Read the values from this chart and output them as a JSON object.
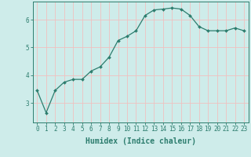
{
  "x": [
    0,
    1,
    2,
    3,
    4,
    5,
    6,
    7,
    8,
    9,
    10,
    11,
    12,
    13,
    14,
    15,
    16,
    17,
    18,
    19,
    20,
    21,
    22,
    23
  ],
  "y": [
    3.45,
    2.65,
    3.45,
    3.75,
    3.85,
    3.85,
    4.15,
    4.3,
    4.65,
    5.25,
    5.4,
    5.6,
    6.15,
    6.35,
    6.38,
    6.42,
    6.38,
    6.15,
    5.75,
    5.6,
    5.6,
    5.6,
    5.7,
    5.6
  ],
  "line_color": "#2d7d6e",
  "marker": "D",
  "marker_size": 2.0,
  "bg_color": "#ceecea",
  "grid_color": "#f0c0c0",
  "xlabel": "Humidex (Indice chaleur)",
  "xlabel_fontsize": 7,
  "tick_fontsize": 5.5,
  "yticks": [
    3,
    4,
    5,
    6
  ],
  "ylim": [
    2.3,
    6.65
  ],
  "xlim": [
    -0.5,
    23.5
  ],
  "xticks": [
    0,
    1,
    2,
    3,
    4,
    5,
    6,
    7,
    8,
    9,
    10,
    11,
    12,
    13,
    14,
    15,
    16,
    17,
    18,
    19,
    20,
    21,
    22,
    23
  ]
}
